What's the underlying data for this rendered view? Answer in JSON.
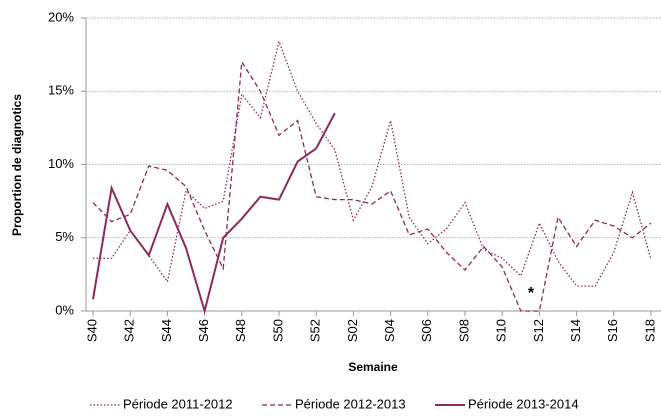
{
  "chart_data": {
    "type": "line",
    "y_label": "Proportion de diagnotics",
    "x_label": "Semaine",
    "annotation": "*",
    "categories": [
      "S40",
      null,
      "S42",
      null,
      "S44",
      null,
      "S46",
      null,
      "S48",
      null,
      "S50",
      null,
      "S52",
      null,
      "S02",
      null,
      "S04",
      null,
      "S06",
      null,
      "S08",
      null,
      "S10",
      null,
      "S12",
      null,
      "S14",
      null,
      "S16",
      null,
      "S18"
    ],
    "series": [
      {
        "name": "Période 2011-2012",
        "color": "#8c2a5c",
        "style": "dotted",
        "values": [
          3.6,
          3.6,
          5.5,
          3.8,
          2.0,
          8.2,
          7.0,
          7.5,
          14.8,
          13.2,
          18.4,
          15.0,
          12.8,
          11.0,
          6.2,
          8.5,
          13.0,
          6.4,
          4.6,
          5.6,
          7.4,
          4.2,
          3.6,
          2.4,
          6.0,
          3.4,
          1.7,
          1.7,
          4.0,
          8.1,
          3.5
        ]
      },
      {
        "name": "Période 2012-2013",
        "color": "#8c2a5c",
        "style": "dashed",
        "values": [
          7.4,
          6.1,
          6.6,
          9.9,
          9.6,
          8.5,
          5.5,
          2.9,
          17.0,
          15.0,
          12.0,
          13.0,
          7.8,
          7.6,
          7.6,
          7.3,
          8.2,
          5.2,
          5.6,
          4.0,
          2.8,
          4.4,
          3.0,
          0.0,
          0.0,
          6.4,
          4.4,
          6.2,
          5.8,
          5.0,
          6.0
        ]
      },
      {
        "name": "Période 2013-2014",
        "color": "#8c2a5c",
        "style": "solid",
        "values": [
          0.8,
          8.4,
          5.5,
          3.8,
          7.3,
          4.3,
          0.0,
          5.0,
          6.3,
          7.8,
          7.6,
          10.2,
          11.1,
          13.5,
          null,
          null,
          null,
          null,
          null,
          null,
          null,
          null,
          null,
          null,
          null,
          null,
          null,
          null,
          null,
          null,
          null
        ]
      }
    ],
    "ylim": [
      0,
      20
    ],
    "yticks": [
      {
        "value": 0,
        "label": "0%"
      },
      {
        "value": 5,
        "label": "5%"
      },
      {
        "value": 10,
        "label": "10%"
      },
      {
        "value": 15,
        "label": "15%"
      },
      {
        "value": 20,
        "label": "20%"
      }
    ],
    "grid": true,
    "legend": "bottom"
  }
}
